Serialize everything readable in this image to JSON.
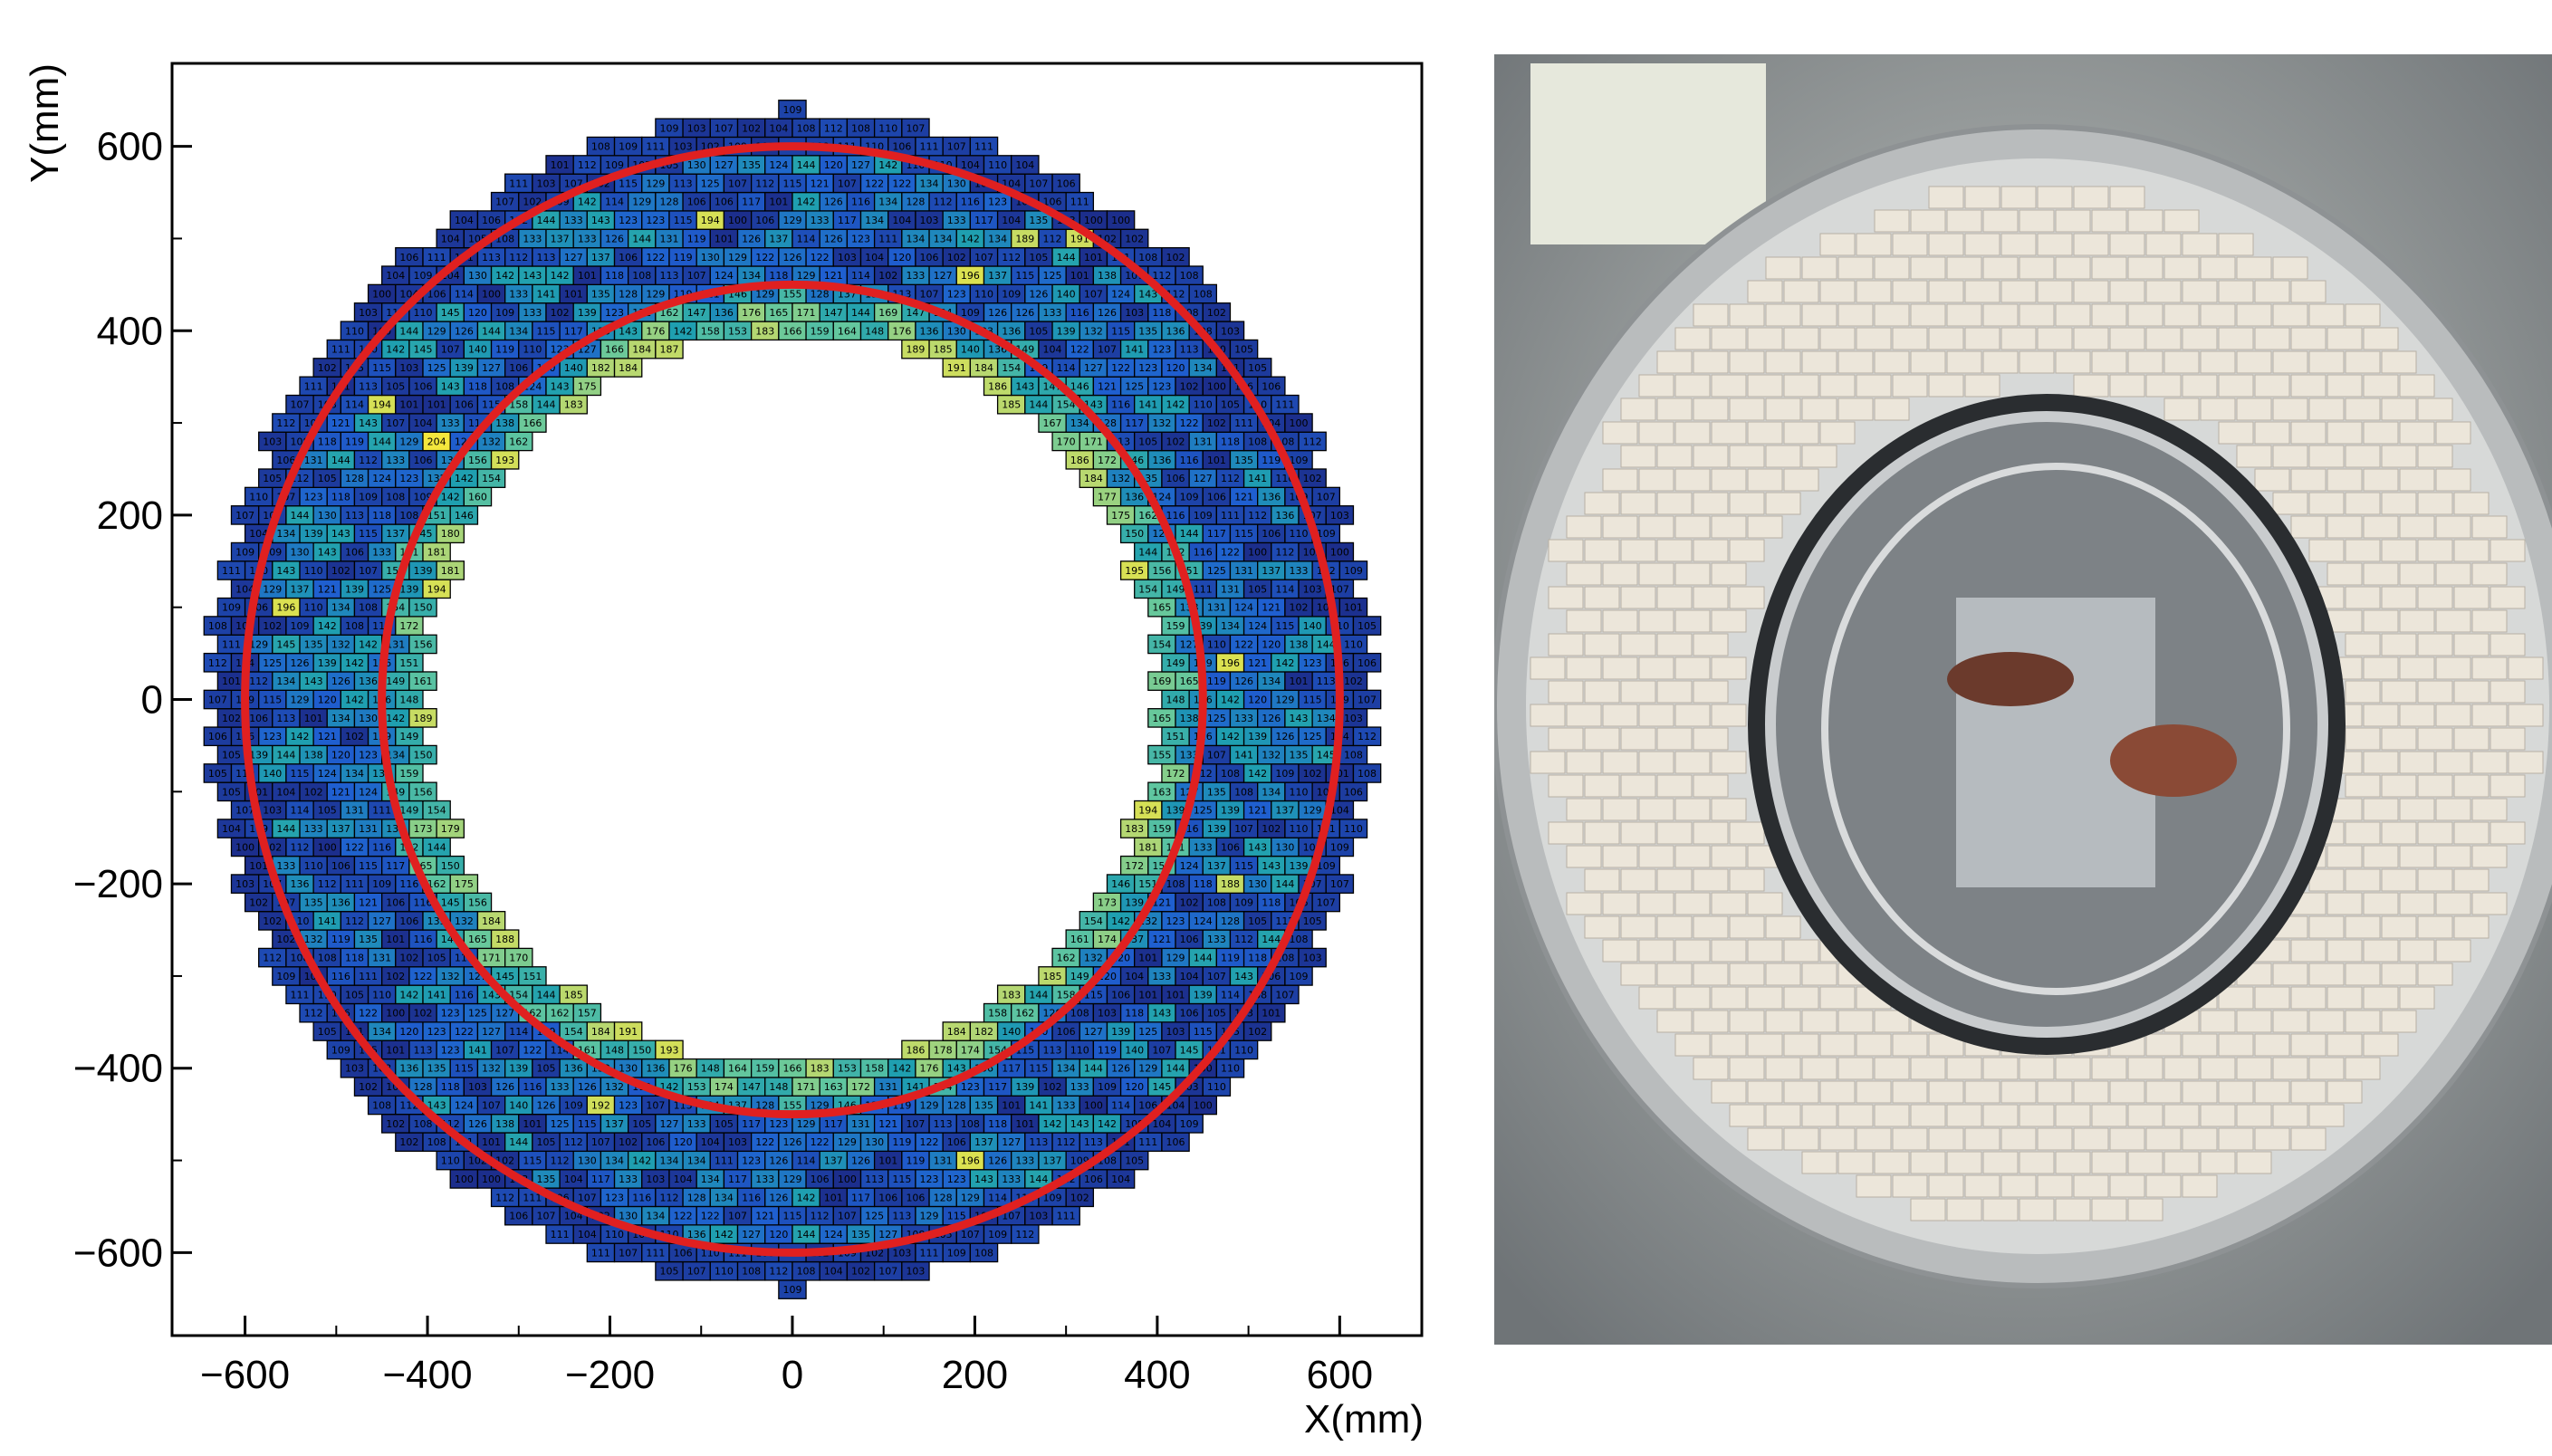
{
  "chart_data": {
    "type": "heatmap",
    "title": "",
    "xlabel": "X(mm)",
    "ylabel": "Y(mm)",
    "xlim": [
      -680,
      690
    ],
    "ylim": [
      -690,
      690
    ],
    "xticks": [
      -600,
      -400,
      -200,
      0,
      200,
      400,
      600
    ],
    "yticks": [
      -600,
      -400,
      -200,
      0,
      200,
      400,
      600
    ],
    "xtick_labels": [
      "−600",
      "−400",
      "−200",
      "0",
      "200",
      "400",
      "600"
    ],
    "ytick_labels": [
      "−600",
      "−400",
      "−200",
      "0",
      "200",
      "400",
      "600"
    ],
    "grid": false,
    "cell_width_mm": 30,
    "cell_height_mm": 20,
    "inner_radius_mm": 400,
    "outer_radius_mm": 640,
    "value_range": [
      100,
      205
    ],
    "colormap": [
      "#1c2e8c",
      "#1f5fd0",
      "#1f9fb0",
      "#5fc6a0",
      "#b8d870",
      "#f6e83a"
    ],
    "circles": [
      {
        "radius_mm": 450,
        "color": "#e02020"
      },
      {
        "radius_mm": 600,
        "color": "#e02020"
      }
    ],
    "sample_cells": [
      {
        "x": -105,
        "y": 520,
        "value": 194
      },
      {
        "x": -465,
        "y": 315,
        "value": 194
      },
      {
        "x": -405,
        "y": 280,
        "value": 204
      },
      {
        "x": -555,
        "y": 105,
        "value": 196
      },
      {
        "x": 255,
        "y": 490,
        "value": 189
      },
      {
        "x": 315,
        "y": 490,
        "value": 191
      },
      {
        "x": 195,
        "y": 450,
        "value": 196
      },
      {
        "x": 465,
        "y": 40,
        "value": 196
      },
      {
        "x": 465,
        "y": -200,
        "value": 188
      },
      {
        "x": 195,
        "y": -510,
        "value": 196
      },
      {
        "x": -225,
        "y": -450,
        "value": 192
      },
      {
        "x": -315,
        "y": -270,
        "value": 188
      }
    ]
  },
  "photo": {
    "icon": "calorimeter-photo-icon"
  }
}
